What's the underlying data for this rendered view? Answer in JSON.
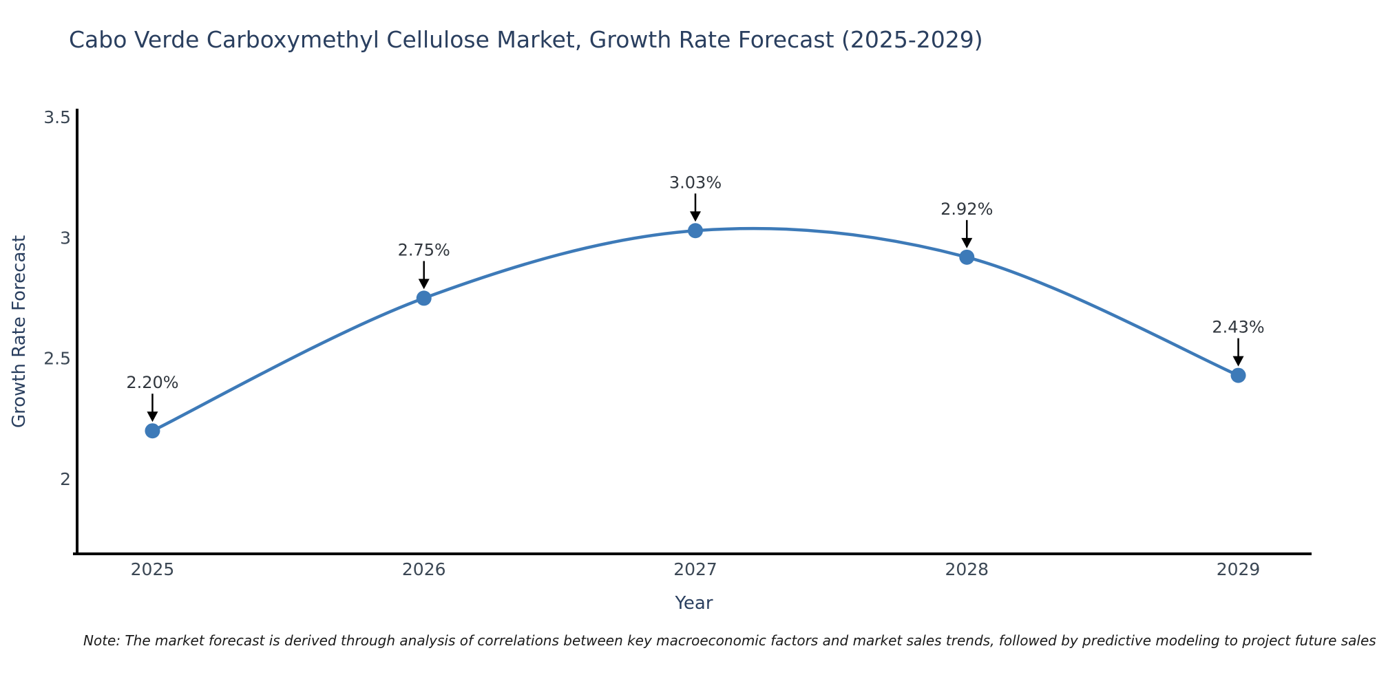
{
  "title": "Cabo Verde Carboxymethyl Cellulose Market, Growth Rate Forecast (2025-2029)",
  "note": "Note: The market forecast is derived through analysis of correlations between key macroeconomic factors and market sales trends, followed by predictive modeling to project future sales",
  "chart_data": {
    "type": "line",
    "line_shape": "spline",
    "x": [
      2025,
      2026,
      2027,
      2028,
      2029
    ],
    "categories": [
      "2025",
      "2026",
      "2027",
      "2028",
      "2029"
    ],
    "values": [
      2.2,
      2.75,
      3.03,
      2.92,
      2.43
    ],
    "point_labels": [
      "2.20%",
      "2.75%",
      "3.03%",
      "2.92%",
      "2.43%"
    ],
    "title": "Cabo Verde Carboxymethyl Cellulose Market, Growth Rate Forecast (2025-2029)",
    "xlabel": "Year",
    "ylabel": "Growth Rate Forecast",
    "y_ticks": [
      2,
      2.5,
      3,
      3.5
    ],
    "y_tick_labels": [
      "2",
      "2.5",
      "3",
      "3.5"
    ],
    "xlim": [
      2024.73,
      2029.27
    ],
    "ylim": [
      1.69,
      3.53
    ],
    "grid": false,
    "legend": "none",
    "annotations_have_arrows": true,
    "colors": {
      "line": "#3d7ab8",
      "marker": "#3d7ab8",
      "axis_line": "#000000",
      "title_text": "#2a3f5f",
      "axis_title_text": "#2a3f5f",
      "tick_text": "#3b4754",
      "annotation_text": "#30363d",
      "annotation_arrow": "#000000",
      "note_text": "#1a1a1a",
      "background": "#ffffff"
    }
  }
}
